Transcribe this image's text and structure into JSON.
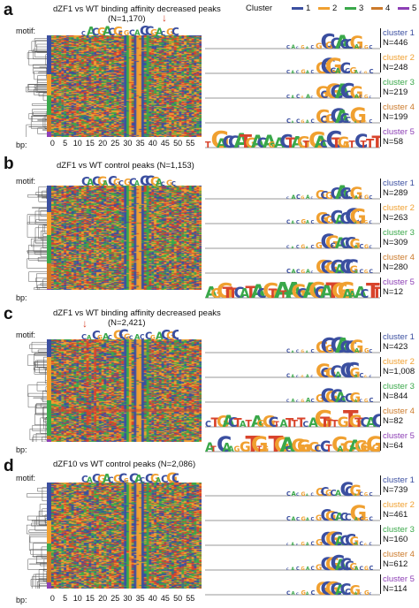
{
  "legend": {
    "title": "Cluster",
    "items": [
      {
        "label": "1",
        "color": "#3b4fa0"
      },
      {
        "label": "2",
        "color": "#f0a030"
      },
      {
        "label": "3",
        "color": "#3aa84a"
      },
      {
        "label": "4",
        "color": "#cc7a2a"
      },
      {
        "label": "5",
        "color": "#8d3fb5"
      }
    ]
  },
  "axis": {
    "motif_label": "motif:",
    "bp_label": "bp:",
    "ticks": [
      "0",
      "5",
      "10",
      "15",
      "20",
      "25",
      "30",
      "35",
      "40",
      "45",
      "50",
      "55"
    ]
  },
  "panels": [
    {
      "letter": "a",
      "title": "dZF1 vs WT binding affinity decreased peaks",
      "subtitle": "(N=1,170)",
      "clusters": [
        {
          "name": "cluster 1",
          "n": "N=446",
          "color": "#3b4fa0"
        },
        {
          "name": "cluster 2",
          "n": "N=248",
          "color": "#f0a030"
        },
        {
          "name": "cluster 3",
          "n": "N=219",
          "color": "#3aa84a"
        },
        {
          "name": "cluster 4",
          "n": "N=199",
          "color": "#cc7a2a"
        },
        {
          "name": "cluster 5",
          "n": "N=58",
          "color": "#8d3fb5"
        }
      ]
    },
    {
      "letter": "b",
      "title": "dZF1 vs WT control peaks (N=1,153)",
      "subtitle": "",
      "clusters": [
        {
          "name": "cluster 1",
          "n": "N=289",
          "color": "#3b4fa0"
        },
        {
          "name": "cluster 2",
          "n": "N=263",
          "color": "#f0a030"
        },
        {
          "name": "cluster 3",
          "n": "N=309",
          "color": "#3aa84a"
        },
        {
          "name": "cluster 4",
          "n": "N=280",
          "color": "#cc7a2a"
        },
        {
          "name": "cluster 5",
          "n": "N=12",
          "color": "#8d3fb5"
        }
      ]
    },
    {
      "letter": "c",
      "title": "dZF1 vs WT binding affinity decreased peaks",
      "subtitle": "(N=2,421)",
      "clusters": [
        {
          "name": "cluster 1",
          "n": "N=423",
          "color": "#3b4fa0"
        },
        {
          "name": "cluster 2",
          "n": "N=1,008",
          "color": "#f0a030"
        },
        {
          "name": "cluster 3",
          "n": "N=844",
          "color": "#3aa84a"
        },
        {
          "name": "cluster 4",
          "n": "N=82",
          "color": "#cc7a2a"
        },
        {
          "name": "cluster 5",
          "n": "N=64",
          "color": "#8d3fb5"
        }
      ]
    },
    {
      "letter": "d",
      "title": "dZF10 vs WT control peaks (N=2,086)",
      "subtitle": "",
      "clusters": [
        {
          "name": "cluster 1",
          "n": "N=739",
          "color": "#3b4fa0"
        },
        {
          "name": "cluster 2",
          "n": "N=461",
          "color": "#f0a030"
        },
        {
          "name": "cluster 3",
          "n": "N=160",
          "color": "#3aa84a"
        },
        {
          "name": "cluster 4",
          "n": "N=612",
          "color": "#cc7a2a"
        },
        {
          "name": "cluster 5",
          "n": "N=114",
          "color": "#8d3fb5"
        }
      ]
    }
  ],
  "colors": {
    "A": "#3aa84a",
    "C": "#3b4fa0",
    "G": "#f0a030",
    "T": "#d8442c",
    "arrow": "#d8442c"
  }
}
